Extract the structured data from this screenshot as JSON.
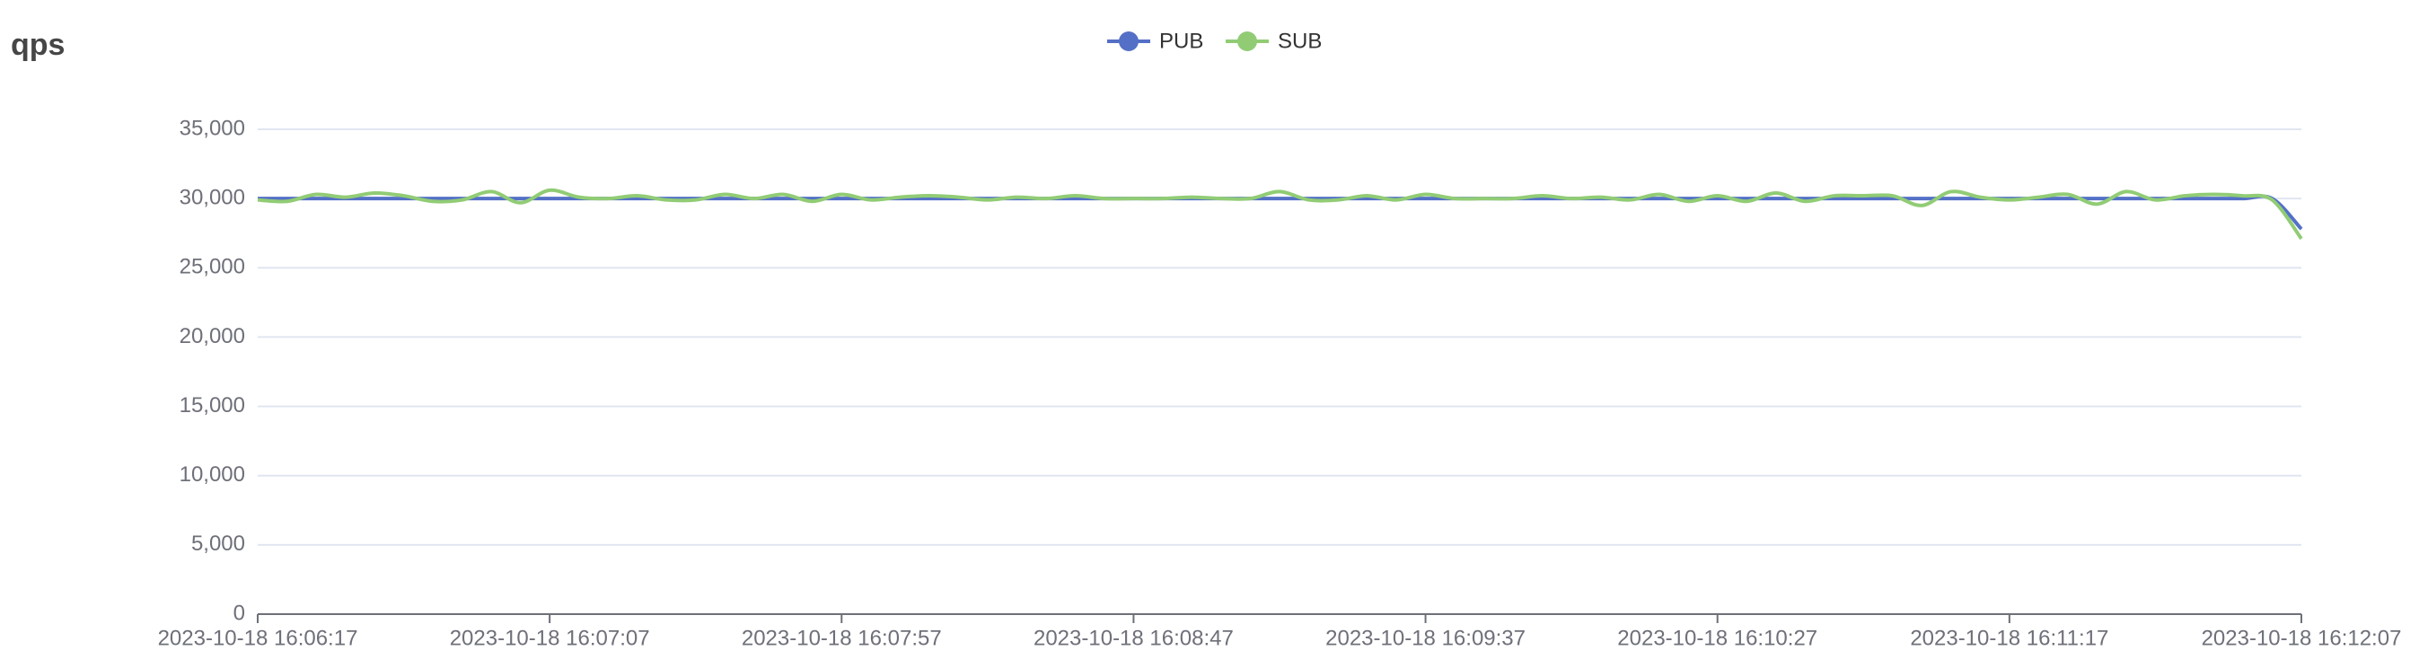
{
  "chart_data": {
    "type": "line",
    "title": "qps",
    "x": [
      "2023-10-18 16:06:17",
      null,
      null,
      null,
      null,
      null,
      null,
      null,
      null,
      null,
      "2023-10-18 16:07:07",
      null,
      null,
      null,
      null,
      null,
      null,
      null,
      null,
      null,
      "2023-10-18 16:07:57",
      null,
      null,
      null,
      null,
      null,
      null,
      null,
      null,
      null,
      "2023-10-18 16:08:47",
      null,
      null,
      null,
      null,
      null,
      null,
      null,
      null,
      null,
      "2023-10-18 16:09:37",
      null,
      null,
      null,
      null,
      null,
      null,
      null,
      null,
      null,
      "2023-10-18 16:10:27",
      null,
      null,
      null,
      null,
      null,
      null,
      null,
      null,
      null,
      "2023-10-18 16:11:17",
      null,
      null,
      null,
      null,
      null,
      null,
      null,
      null,
      null,
      "2023-10-18 16:12:07"
    ],
    "series": [
      {
        "name": "PUB",
        "color": "#5470c6",
        "values": [
          30000,
          30000,
          30000,
          30000,
          30000,
          30000,
          30000,
          30000,
          30000,
          30000,
          30000,
          30000,
          30000,
          30000,
          30000,
          30000,
          30000,
          30000,
          30000,
          30000,
          30000,
          30000,
          30000,
          30000,
          30000,
          30000,
          30000,
          30000,
          30000,
          30000,
          30000,
          30000,
          30000,
          30000,
          30000,
          30000,
          30000,
          30000,
          30000,
          30000,
          30000,
          30000,
          30000,
          30000,
          30000,
          30000,
          30000,
          30000,
          30000,
          30000,
          30000,
          30000,
          30000,
          30000,
          30000,
          30000,
          30000,
          30000,
          30000,
          30000,
          30000,
          30000,
          30000,
          30000,
          30000,
          30000,
          30000,
          30000,
          30000,
          30000,
          27800
        ]
      },
      {
        "name": "SUB",
        "color": "#91cc75",
        "values": [
          29900,
          29800,
          30300,
          30100,
          30400,
          30200,
          29800,
          29900,
          30500,
          29700,
          30600,
          30100,
          30000,
          30200,
          29900,
          29900,
          30300,
          30000,
          30300,
          29800,
          30300,
          29900,
          30100,
          30200,
          30100,
          29900,
          30100,
          30000,
          30200,
          30000,
          30000,
          30000,
          30100,
          30000,
          30000,
          30500,
          29900,
          29900,
          30200,
          29900,
          30300,
          30000,
          30000,
          30000,
          30200,
          30000,
          30100,
          29900,
          30300,
          29800,
          30200,
          29800,
          30400,
          29800,
          30200,
          30200,
          30200,
          29500,
          30500,
          30100,
          29900,
          30100,
          30300,
          29600,
          30500,
          29900,
          30200,
          30300,
          30200,
          29900,
          27100
        ]
      }
    ],
    "ylim": [
      0,
      35000
    ],
    "yticks": [
      0,
      {
        "value": 5000,
        "label": "5,000"
      },
      {
        "value": 10000,
        "label": "10,000"
      },
      {
        "value": 15000,
        "label": "15,000"
      },
      {
        "value": 20000,
        "label": "20,000"
      },
      {
        "value": 25000,
        "label": "25,000"
      },
      {
        "value": 30000,
        "label": "30,000"
      },
      {
        "value": 35000,
        "label": "35,000"
      }
    ],
    "grid": true,
    "smooth": true,
    "legend": "top"
  }
}
